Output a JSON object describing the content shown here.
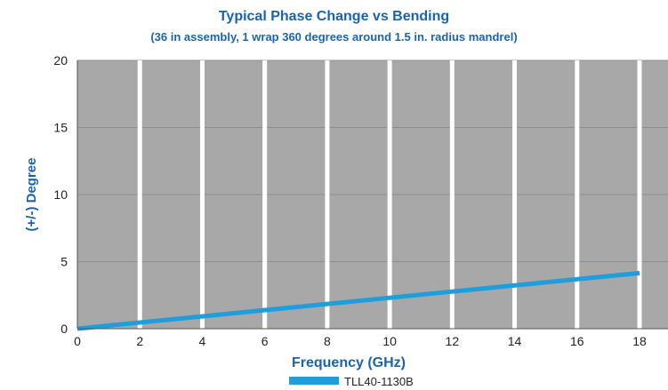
{
  "chart_data": {
    "type": "line",
    "title": "Typical Phase Change vs  Bending",
    "subtitle": "(36 in assembly, 1 wrap 360 degrees around 1.5 in. radius mandrel)",
    "xlabel": "Frequency (GHz)",
    "ylabel": "(+/-) Degree",
    "xlim": [
      0,
      18
    ],
    "ylim": [
      0,
      20
    ],
    "x_ticks": [
      "0",
      "2",
      "4",
      "6",
      "8",
      "10",
      "12",
      "14",
      "16",
      "18"
    ],
    "y_ticks": [
      "0",
      "5",
      "10",
      "15",
      "20"
    ],
    "grid": true,
    "legend_position": "bottom-center",
    "series": [
      {
        "name": "TLL40-1130B",
        "color": "#1e9fdc",
        "x": [
          0,
          18
        ],
        "y": [
          0,
          4.15
        ]
      }
    ]
  },
  "colors": {
    "plot_background": "#a8a8a8",
    "title": "#1b63ad",
    "vertical_grid": "#ffffff",
    "horizontal_grid": "#8c8c8c"
  }
}
